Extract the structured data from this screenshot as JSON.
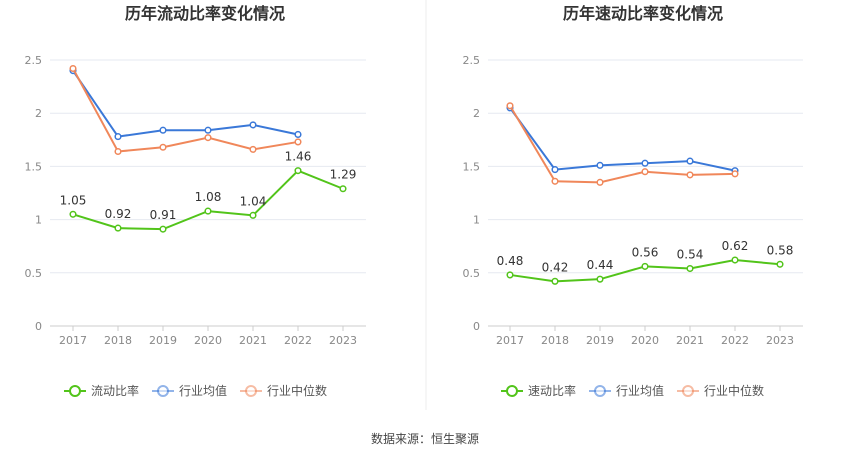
{
  "source": "数据来源：恒生聚源",
  "chart_data": [
    {
      "type": "line",
      "title": "历年流动比率变化情况",
      "categories": [
        "2017",
        "2018",
        "2019",
        "2020",
        "2021",
        "2022",
        "2023"
      ],
      "ylim": [
        0,
        2.5
      ],
      "yticks": [
        "0",
        "0.5",
        "1",
        "1.5",
        "2",
        "2.5"
      ],
      "grid": true,
      "legend_position": "bottom",
      "series": [
        {
          "name": "流动比率",
          "color": "#52c41a",
          "labels": true,
          "values": [
            1.05,
            0.92,
            0.91,
            1.08,
            1.04,
            1.46,
            1.29
          ],
          "value_labels": [
            "1.05",
            "0.92",
            "0.91",
            "1.08",
            "1.04",
            "1.46",
            "1.29"
          ]
        },
        {
          "name": "行业均值",
          "color": "#3a78d8",
          "labels": false,
          "values": [
            2.4,
            1.78,
            1.84,
            1.84,
            1.89,
            1.8,
            null
          ]
        },
        {
          "name": "行业中位数",
          "color": "#f0875a",
          "labels": false,
          "values": [
            2.42,
            1.64,
            1.68,
            1.77,
            1.66,
            1.73,
            null
          ]
        }
      ]
    },
    {
      "type": "line",
      "title": "历年速动比率变化情况",
      "categories": [
        "2017",
        "2018",
        "2019",
        "2020",
        "2021",
        "2022",
        "2023"
      ],
      "ylim": [
        0,
        2.5
      ],
      "yticks": [
        "0",
        "0.5",
        "1",
        "1.5",
        "2",
        "2.5"
      ],
      "grid": true,
      "legend_position": "bottom",
      "series": [
        {
          "name": "速动比率",
          "color": "#52c41a",
          "labels": true,
          "values": [
            0.48,
            0.42,
            0.44,
            0.56,
            0.54,
            0.62,
            0.58
          ],
          "value_labels": [
            "0.48",
            "0.42",
            "0.44",
            "0.56",
            "0.54",
            "0.62",
            "0.58"
          ]
        },
        {
          "name": "行业均值",
          "color": "#3a78d8",
          "labels": false,
          "values": [
            2.05,
            1.47,
            1.51,
            1.53,
            1.55,
            1.46,
            null
          ]
        },
        {
          "name": "行业中位数",
          "color": "#f0875a",
          "labels": false,
          "values": [
            2.07,
            1.36,
            1.35,
            1.45,
            1.42,
            1.43,
            null
          ]
        }
      ]
    }
  ]
}
